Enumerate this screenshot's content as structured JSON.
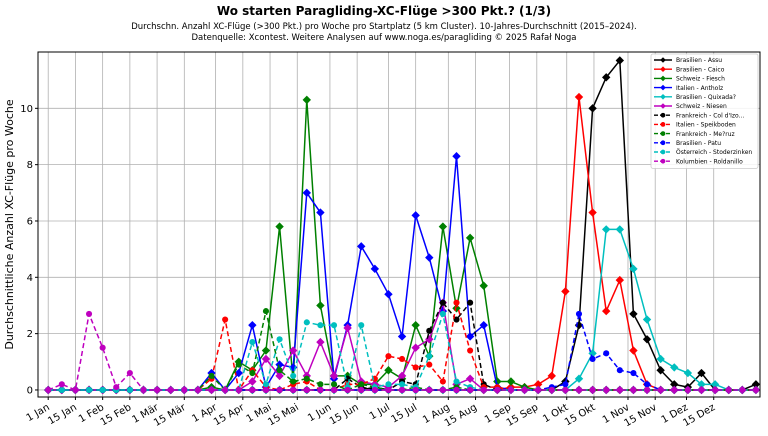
{
  "chart_data": {
    "type": "line",
    "title": "Wo starten Paragliding-XC-Flüge >300 Pkt.? (1/3)",
    "subtitle_lines": [
      "Durchschn. Anzahl XC-Flüge (>300 Pkt.) pro Woche pro Startplatz (5 km Cluster). 10-Jahres-Durchschnitt (2015–2024).",
      "Datenquelle: Xcontest. Weitere Analysen auf www.noga.es/paragliding © 2025 Rafał Noga"
    ],
    "ylabel": "Durchschnittliche Anzahl XC-Flüge pro Woche",
    "xlabel": "",
    "x_weeks": [
      1,
      2,
      3,
      4,
      5,
      6,
      7,
      8,
      9,
      10,
      11,
      12,
      13,
      14,
      15,
      16,
      17,
      18,
      19,
      20,
      21,
      22,
      23,
      24,
      25,
      26,
      27,
      28,
      29,
      30,
      31,
      32,
      33,
      34,
      35,
      36,
      37,
      38,
      39,
      40,
      41,
      42,
      43,
      44,
      45,
      46,
      47,
      48,
      49,
      50,
      51,
      52,
      53
    ],
    "xlim": [
      0.25,
      53.3
    ],
    "ylim": [
      -0.25,
      12
    ],
    "y_ticks": [
      0,
      2,
      4,
      6,
      8,
      10
    ],
    "x_ticks": [
      {
        "label": "1 Jan",
        "week": 1
      },
      {
        "label": "15 Jan",
        "week": 3
      },
      {
        "label": "1 Feb",
        "week": 5
      },
      {
        "label": "15 Feb",
        "week": 7
      },
      {
        "label": "1 Mär",
        "week": 9
      },
      {
        "label": "15 Mär",
        "week": 11
      },
      {
        "label": "1 Apr",
        "week": 13.3
      },
      {
        "label": "15 Apr",
        "week": 15.3
      },
      {
        "label": "1 Mai",
        "week": 17.3
      },
      {
        "label": "15 Mai",
        "week": 19.3
      },
      {
        "label": "1 Jun",
        "week": 21.7
      },
      {
        "label": "15 Jun",
        "week": 23.7
      },
      {
        "label": "1 Jul",
        "week": 26
      },
      {
        "label": "15 Jul",
        "week": 28
      },
      {
        "label": "1 Aug",
        "week": 30.4
      },
      {
        "label": "15 Aug",
        "week": 32.4
      },
      {
        "label": "1 Sep",
        "week": 34.9
      },
      {
        "label": "15 Sep",
        "week": 36.9
      },
      {
        "label": "1 Okt",
        "week": 39.1
      },
      {
        "label": "15 Okt",
        "week": 41.1
      },
      {
        "label": "1 Nov",
        "week": 43.6
      },
      {
        "label": "15 Nov",
        "week": 45.6
      },
      {
        "label": "1 Dez",
        "week": 47.9
      },
      {
        "label": "15 Dez",
        "week": 49.9
      }
    ],
    "grid": true,
    "legend_position": "top-right",
    "series": [
      {
        "name": "Brasilien - Assu",
        "color": "#000000",
        "style": "solid",
        "marker": "diamond",
        "values": [
          0,
          0,
          0,
          0,
          0,
          0,
          0,
          0,
          0,
          0,
          0,
          0,
          0,
          0,
          0,
          0,
          0,
          0,
          0,
          0,
          0,
          0,
          0,
          0,
          0.1,
          0,
          0,
          0,
          0,
          0,
          0,
          0,
          0,
          0,
          0,
          0,
          0,
          0,
          0.3,
          2.3,
          10,
          11.1,
          11.7,
          2.7,
          1.8,
          0.7,
          0.2,
          0.1,
          0.6,
          0,
          0,
          0,
          0.2
        ]
      },
      {
        "name": "Brasilien - Caico",
        "color": "#ff0000",
        "style": "solid",
        "marker": "diamond",
        "values": [
          0,
          0,
          0,
          0,
          0,
          0,
          0,
          0,
          0,
          0,
          0,
          0,
          0,
          0,
          0,
          0,
          0,
          0,
          0,
          0,
          0,
          0,
          0,
          0,
          0,
          0,
          0,
          0,
          0,
          0,
          0,
          0,
          0,
          0,
          0.1,
          0.1,
          0.2,
          0.5,
          3.5,
          10.4,
          6.3,
          2.8,
          3.9,
          1.4,
          0.2,
          0,
          0,
          0,
          0,
          0,
          0,
          0,
          0
        ]
      },
      {
        "name": "Schweiz - Fiesch",
        "color": "#008000",
        "style": "solid",
        "marker": "diamond",
        "values": [
          0,
          0,
          0,
          0,
          0,
          0,
          0,
          0,
          0,
          0,
          0,
          0,
          0.1,
          0,
          1,
          0.7,
          1.4,
          5.8,
          0.3,
          10.3,
          3,
          0.5,
          0.5,
          0.2,
          0.2,
          0.7,
          0.4,
          2.3,
          1.2,
          5.8,
          2.9,
          5.4,
          3.7,
          0.3,
          0.3,
          0.1,
          0,
          0,
          0,
          0,
          0,
          0,
          0,
          0,
          0,
          0,
          0,
          0,
          0,
          0,
          0,
          0,
          0
        ]
      },
      {
        "name": "Italien - Antholz",
        "color": "#0000ff",
        "style": "solid",
        "marker": "diamond",
        "values": [
          0,
          0,
          0,
          0,
          0,
          0,
          0,
          0,
          0,
          0,
          0,
          0,
          0.6,
          0,
          0.6,
          2.3,
          0.1,
          0.9,
          0.8,
          7,
          6.3,
          0.4,
          2.3,
          5.1,
          4.3,
          3.4,
          1.9,
          6.2,
          4.7,
          2.8,
          8.3,
          1.9,
          2.3,
          0.1,
          0,
          0,
          0,
          0,
          0,
          0,
          0,
          0,
          0,
          0,
          0,
          0,
          0,
          0,
          0,
          0,
          0,
          0,
          0
        ]
      },
      {
        "name": "Brasilien - Quixada?",
        "color": "#00bfbf",
        "style": "solid",
        "marker": "diamond",
        "values": [
          0,
          0,
          0,
          0,
          0,
          0,
          0,
          0,
          0,
          0,
          0,
          0,
          0,
          0,
          0,
          0,
          0,
          0,
          0,
          0,
          0,
          0,
          0,
          0,
          0,
          0,
          0,
          0,
          0,
          0,
          0,
          0,
          0,
          0,
          0,
          0,
          0,
          0,
          0,
          0.4,
          1.3,
          5.7,
          5.7,
          4.3,
          2.5,
          1.1,
          0.8,
          0.6,
          0.2,
          0.2,
          0,
          0,
          0
        ]
      },
      {
        "name": "Schweiz - Niesen",
        "color": "#bf00bf",
        "style": "solid",
        "marker": "diamond",
        "values": [
          0,
          0,
          0,
          0,
          0,
          0,
          0,
          0,
          0,
          0,
          0,
          0,
          0,
          0,
          0,
          0.3,
          1.1,
          0.5,
          1.4,
          0.5,
          1.7,
          0.5,
          2.2,
          0.3,
          0.2,
          0.1,
          0.5,
          1.5,
          1.8,
          3.1,
          0.2,
          0.4,
          0,
          0,
          0,
          0,
          0,
          0,
          0,
          0,
          0,
          0,
          0,
          0,
          0,
          0,
          0,
          0,
          0,
          0,
          0,
          0,
          0
        ]
      },
      {
        "name": "Frankreich - Col d'Izo...",
        "color": "#000000",
        "style": "dashed",
        "marker": "circle",
        "values": [
          0,
          0,
          0,
          0,
          0,
          0,
          0,
          0,
          0,
          0,
          0,
          0,
          0,
          0,
          0,
          0,
          0,
          0,
          0,
          0,
          0,
          0,
          0.4,
          0.1,
          0,
          0,
          0.3,
          0.2,
          2.1,
          3.1,
          2.5,
          3.1,
          0.2,
          0,
          0,
          0,
          0,
          0,
          0,
          0,
          0,
          0,
          0,
          0,
          0,
          0,
          0,
          0,
          0,
          0,
          0,
          0,
          0
        ]
      },
      {
        "name": "Italien - Speikboden",
        "color": "#ff0000",
        "style": "dashed",
        "marker": "circle",
        "values": [
          0,
          0,
          0,
          0,
          0,
          0,
          0,
          0,
          0,
          0,
          0,
          0,
          0.4,
          2.5,
          0,
          0.7,
          0.1,
          0,
          0.2,
          0.3,
          0,
          0,
          0.2,
          0.2,
          0.4,
          1.2,
          1.1,
          0.8,
          0.9,
          0.3,
          3.1,
          1.4,
          0.1,
          0.1,
          0,
          0,
          0,
          0,
          0,
          0,
          0,
          0,
          0,
          0,
          0,
          0,
          0,
          0,
          0,
          0,
          0,
          0,
          0
        ]
      },
      {
        "name": "Frankreich - Me?ruz",
        "color": "#008000",
        "style": "dashed",
        "marker": "circle",
        "values": [
          0,
          0,
          0,
          0,
          0,
          0,
          0,
          0,
          0,
          0,
          0,
          0,
          0.5,
          0,
          0.9,
          0.6,
          2.8,
          0.7,
          0.3,
          0.4,
          0.2,
          0.2,
          0,
          0.2,
          0.1,
          0,
          0,
          0.1,
          0,
          0,
          0.1,
          0,
          0,
          0,
          0,
          0,
          0,
          0,
          0,
          0,
          0,
          0,
          0,
          0,
          0,
          0,
          0,
          0,
          0,
          0,
          0,
          0,
          0
        ]
      },
      {
        "name": "Brasilien - Patu",
        "color": "#0000ff",
        "style": "dashed",
        "marker": "circle",
        "values": [
          0,
          0,
          0,
          0,
          0,
          0,
          0,
          0,
          0,
          0,
          0,
          0,
          0,
          0,
          0,
          0,
          0,
          0,
          0,
          0,
          0,
          0,
          0,
          0,
          0,
          0,
          0,
          0,
          0,
          0,
          0,
          0,
          0,
          0,
          0,
          0,
          0,
          0.1,
          0.2,
          2.7,
          1.1,
          1.3,
          0.7,
          0.6,
          0.2,
          0,
          0,
          0,
          0,
          0,
          0,
          0,
          0
        ]
      },
      {
        "name": "Österreich - Stoderzinken",
        "color": "#00bfbf",
        "style": "dashed",
        "marker": "circle",
        "values": [
          0,
          0,
          0,
          0,
          0,
          0,
          0,
          0,
          0,
          0,
          0,
          0,
          0,
          0,
          0,
          1.7,
          0.2,
          1.8,
          0.5,
          2.4,
          2.3,
          2.3,
          0.1,
          2.3,
          0.1,
          0.2,
          0.2,
          0.1,
          1.2,
          2.7,
          0.3,
          0.1,
          0,
          0,
          0,
          0,
          0,
          0,
          0,
          0,
          0,
          0,
          0,
          0,
          0,
          0,
          0,
          0,
          0,
          0,
          0,
          0,
          0
        ]
      },
      {
        "name": "Kolumbien - Roldanillo",
        "color": "#bf00bf",
        "style": "dashed",
        "marker": "circle",
        "values": [
          0,
          0.2,
          0,
          2.7,
          1.5,
          0.1,
          0.6,
          0,
          0,
          0,
          0,
          0,
          0,
          0,
          0,
          0,
          0,
          0,
          0,
          0,
          0,
          0,
          0,
          0,
          0,
          0,
          0,
          0,
          0,
          0,
          0,
          0,
          0,
          0,
          0,
          0,
          0,
          0,
          0,
          0,
          0,
          0,
          0,
          0,
          0,
          0,
          0,
          0,
          0,
          0,
          0,
          0,
          0
        ]
      }
    ]
  }
}
